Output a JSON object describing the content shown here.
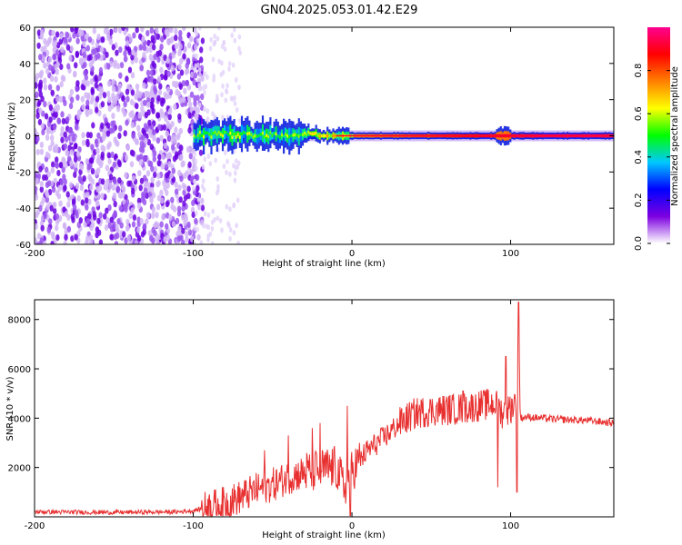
{
  "title": "GN04.2025.053.01.42.E29",
  "chart_data": [
    {
      "type": "heatmap",
      "xlabel": "Height of straight line (km)",
      "ylabel": "Frequency (Hz)",
      "xlim": [
        -200,
        165
      ],
      "ylim": [
        -60,
        60
      ],
      "xticks": [
        -200,
        -100,
        0,
        100
      ],
      "yticks": [
        -60,
        -40,
        -20,
        0,
        20,
        40,
        60
      ],
      "grid": false,
      "colorbar": {
        "label": "Normalized spectral amplitude",
        "ticks": [
          0.0,
          0.2,
          0.4,
          0.6,
          0.8
        ],
        "range": [
          0,
          1
        ],
        "colormap": [
          "#ffffff",
          "#7d00e0",
          "#0000ff",
          "#00c8ff",
          "#00ff00",
          "#ffff00",
          "#ff8000",
          "#ff0000",
          "#ff0090"
        ]
      },
      "description_values": {
        "noise_region_x": [
          -200,
          -100
        ],
        "noise_amplitude": 0.15,
        "signal_x": [
          -100,
          165
        ],
        "signal_center_freq": 0,
        "signal_amplitude_near": 0.5,
        "signal_amplitude_far": 0.95
      }
    },
    {
      "type": "line",
      "xlabel": "Height of straight line (km)",
      "ylabel": "SNR (10 * v/v)",
      "xlim": [
        -200,
        165
      ],
      "ylim": [
        0,
        8800
      ],
      "xticks": [
        -200,
        -100,
        0,
        100
      ],
      "yticks": [
        2000,
        4000,
        6000,
        8000
      ],
      "grid": false,
      "series": [
        {
          "color": "#e83030",
          "x": [
            -200,
            -150,
            -110,
            -100,
            -90,
            -80,
            -70,
            -60,
            -50,
            -40,
            -30,
            -20,
            -10,
            -5,
            0,
            10,
            20,
            30,
            40,
            50,
            60,
            70,
            80,
            90,
            95,
            100,
            104,
            105,
            106,
            110,
            130,
            150,
            165
          ],
          "y": [
            200,
            180,
            200,
            250,
            400,
            550,
            800,
            1100,
            1300,
            1600,
            1800,
            1900,
            2000,
            1200,
            1900,
            2700,
            3200,
            3800,
            4200,
            4300,
            4350,
            4400,
            4500,
            4600,
            4200,
            4400,
            4800,
            8700,
            4000,
            4050,
            3950,
            3900,
            3800
          ],
          "peaks": [
            {
              "x": -55,
              "y": 2700
            },
            {
              "x": -40,
              "y": 3300
            },
            {
              "x": -25,
              "y": 3600
            },
            {
              "x": -20,
              "y": 3800
            },
            {
              "x": -3,
              "y": 4500
            },
            {
              "x": 70,
              "y": 5100
            },
            {
              "x": 92,
              "y": 6200
            },
            {
              "x": 97,
              "y": 6500
            },
            {
              "x": 105,
              "y": 8700
            }
          ],
          "dips": [
            {
              "x": -1,
              "y": 50
            },
            {
              "x": 92,
              "y": 1200
            },
            {
              "x": 104,
              "y": 1000
            }
          ]
        }
      ]
    }
  ]
}
